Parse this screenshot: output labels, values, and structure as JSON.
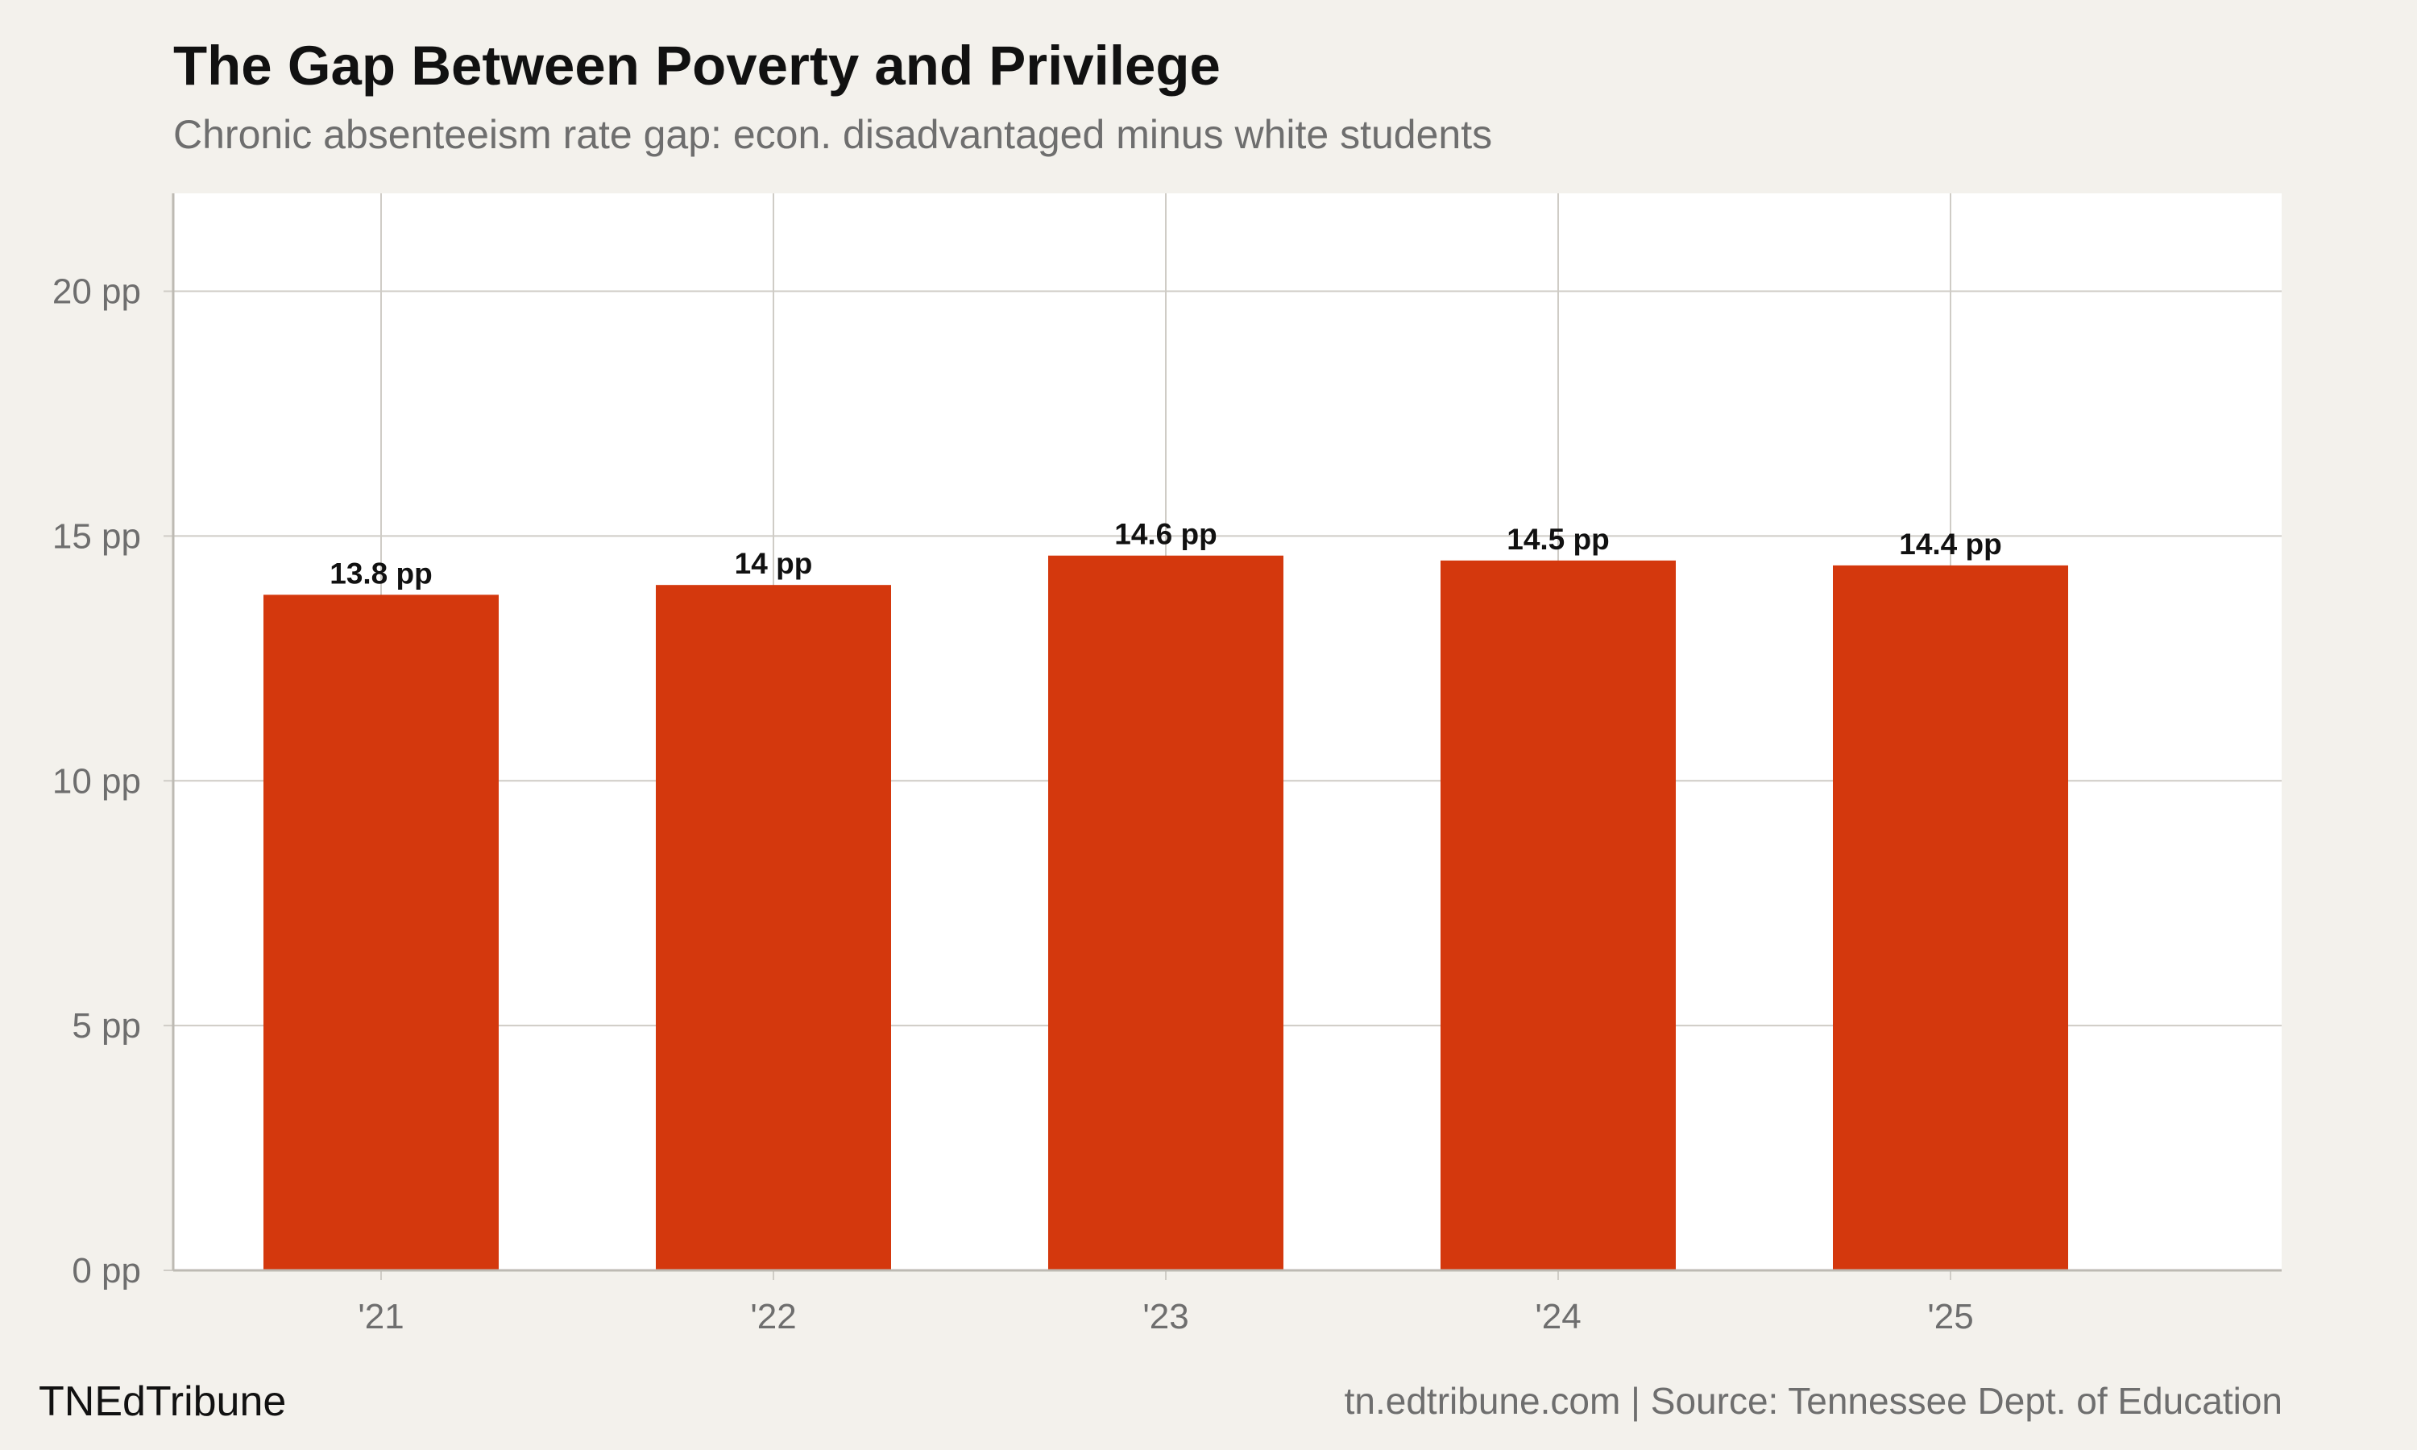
{
  "header": {
    "title": "The Gap Between Poverty and Privilege",
    "subtitle": "Chronic absenteeism rate gap: econ. disadvantaged minus white students"
  },
  "footer": {
    "brand": "TNEdTribune",
    "source": "tn.edtribune.com | Source: Tennessee Dept. of Education"
  },
  "colors": {
    "bar": "#d4380d",
    "plot_background": "#ffffff",
    "page_background": "#f3f1ec",
    "grid": "#cfccc6"
  },
  "chart_data": {
    "type": "bar",
    "title": "The Gap Between Poverty and Privilege",
    "subtitle": "Chronic absenteeism rate gap: econ. disadvantaged minus white students",
    "categories": [
      "'21",
      "'22",
      "'23",
      "'24",
      "'25"
    ],
    "values": [
      13.8,
      14.0,
      14.6,
      14.5,
      14.4
    ],
    "data_labels": [
      "13.8 pp",
      "14 pp",
      "14.6 pp",
      "14.5 pp",
      "14.4 pp"
    ],
    "ylim": [
      0,
      22
    ],
    "yticks": [
      0,
      5,
      10,
      15,
      20
    ],
    "ytick_labels": [
      "0 pp",
      "5 pp",
      "10 pp",
      "15 pp",
      "20 pp"
    ],
    "xlabel": "",
    "ylabel": "",
    "grid": true,
    "legend": "none"
  }
}
